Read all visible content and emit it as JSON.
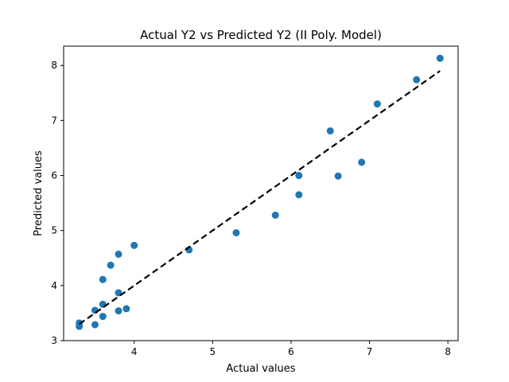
{
  "chart_data": {
    "type": "scatter",
    "title": "Actual Y2 vs Predicted Y2 (II Poly. Model)",
    "xlabel": "Actual values",
    "ylabel": "Predicted values",
    "xlim": [
      3.1,
      8.13
    ],
    "ylim": [
      3.0,
      8.35
    ],
    "xticks": [
      4,
      5,
      6,
      7,
      8
    ],
    "yticks": [
      3,
      4,
      5,
      6,
      7,
      8
    ],
    "grid": false,
    "point_color": "#1f77b4",
    "line_color": "#000000",
    "reference_line": {
      "style": "dashed",
      "x": [
        3.3,
        7.9
      ],
      "y": [
        3.3,
        7.9
      ]
    },
    "points": [
      {
        "x": 3.3,
        "y": 3.32
      },
      {
        "x": 3.3,
        "y": 3.26
      },
      {
        "x": 3.5,
        "y": 3.55
      },
      {
        "x": 3.5,
        "y": 3.29
      },
      {
        "x": 3.6,
        "y": 3.66
      },
      {
        "x": 3.6,
        "y": 3.44
      },
      {
        "x": 3.6,
        "y": 4.11
      },
      {
        "x": 3.7,
        "y": 4.37
      },
      {
        "x": 3.8,
        "y": 4.57
      },
      {
        "x": 3.8,
        "y": 3.87
      },
      {
        "x": 3.8,
        "y": 3.54
      },
      {
        "x": 3.9,
        "y": 3.58
      },
      {
        "x": 4.0,
        "y": 4.73
      },
      {
        "x": 4.7,
        "y": 4.65
      },
      {
        "x": 5.3,
        "y": 4.96
      },
      {
        "x": 5.8,
        "y": 5.28
      },
      {
        "x": 6.1,
        "y": 6.0
      },
      {
        "x": 6.1,
        "y": 5.65
      },
      {
        "x": 6.5,
        "y": 6.81
      },
      {
        "x": 6.6,
        "y": 5.99
      },
      {
        "x": 6.9,
        "y": 6.24
      },
      {
        "x": 7.1,
        "y": 7.3
      },
      {
        "x": 7.6,
        "y": 7.74
      },
      {
        "x": 7.9,
        "y": 8.13
      }
    ]
  }
}
